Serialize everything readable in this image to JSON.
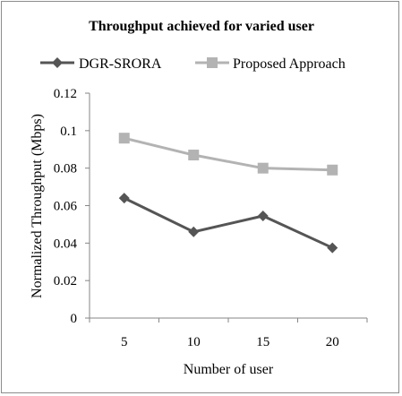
{
  "chart_data": {
    "type": "line",
    "title": "Throughput achieved for varied user",
    "xlabel": "Number of user",
    "ylabel": "Normalized Throughput (Mbps)",
    "categories": [
      "5",
      "10",
      "15",
      "20"
    ],
    "ylim": [
      0,
      0.12
    ],
    "yticks": [
      "0",
      "0.02",
      "0.04",
      "0.06",
      "0.08",
      "0.1",
      "0.12"
    ],
    "grid": false,
    "legend_position": "top",
    "series": [
      {
        "name": "DGR-SRORA",
        "values": [
          0.064,
          0.046,
          0.0545,
          0.0375
        ],
        "color": "#555555",
        "marker": "diamond"
      },
      {
        "name": "Proposed Approach",
        "values": [
          0.096,
          0.087,
          0.08,
          0.079
        ],
        "color": "#b3b3b3",
        "marker": "square"
      }
    ]
  }
}
